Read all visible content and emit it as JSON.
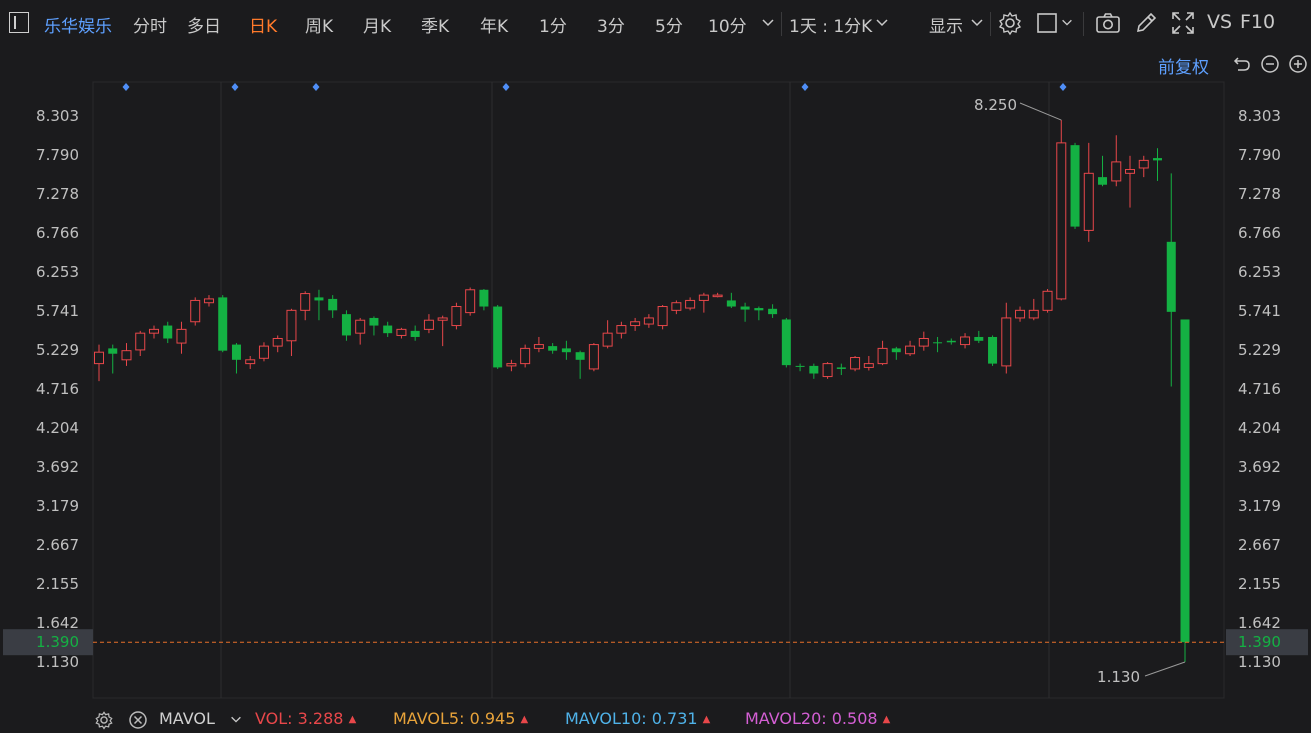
{
  "toolbar": {
    "stock_name": "乐华娱乐",
    "periods": [
      "分时",
      "多日",
      "日K",
      "周K",
      "月K",
      "季K",
      "年K",
      "1分",
      "3分",
      "5分",
      "10分"
    ],
    "active_period": "日K",
    "interval_select": "1天 : 1分K",
    "display_label": "显示",
    "vs_label": "VS",
    "f10_label": "F10",
    "icons": [
      "sidebar-toggle-icon",
      "dropdown-chevron-icon",
      "settings-gear-icon",
      "rectangle-draw-icon",
      "camera-icon",
      "pencil-icon",
      "expand-icon"
    ]
  },
  "adjust_label": "前复权",
  "adjust_icons": [
    "undo-icon",
    "zoom-out-icon",
    "zoom-in-icon"
  ],
  "colors": {
    "up": "#e8474a",
    "down": "#14b143",
    "bg": "#1b1b1d",
    "grid": "#2e2e30",
    "accent": "#5ea0ff",
    "current_line": "#e8702a",
    "marker": "#4f8ef7"
  },
  "chart_data": {
    "type": "candlestick",
    "y_ticks": [
      "8.303",
      "7.790",
      "7.278",
      "6.766",
      "6.253",
      "5.741",
      "5.229",
      "4.716",
      "4.204",
      "3.692",
      "3.179",
      "2.667",
      "2.155",
      "1.642",
      "1.130"
    ],
    "ylim": [
      1.13,
      8.303
    ],
    "current_price": "1.390",
    "high_annotation": "8.250",
    "low_annotation": "1.130",
    "event_marker_count": 6,
    "candles": [
      [
        5.05,
        5.2,
        5.3,
        4.82
      ],
      [
        5.25,
        5.18,
        5.3,
        4.92
      ],
      [
        5.1,
        5.22,
        5.32,
        5.02
      ],
      [
        5.23,
        5.45,
        5.48,
        5.15
      ],
      [
        5.45,
        5.5,
        5.55,
        5.38
      ],
      [
        5.55,
        5.38,
        5.6,
        5.32
      ],
      [
        5.32,
        5.5,
        5.6,
        5.18
      ],
      [
        5.6,
        5.88,
        5.92,
        5.55
      ],
      [
        5.85,
        5.9,
        5.95,
        5.8
      ],
      [
        5.92,
        5.22,
        5.95,
        5.2
      ],
      [
        5.3,
        5.1,
        5.32,
        4.92
      ],
      [
        5.05,
        5.1,
        5.15,
        4.98
      ],
      [
        5.12,
        5.28,
        5.33,
        5.08
      ],
      [
        5.28,
        5.38,
        5.42,
        5.2
      ],
      [
        5.35,
        5.75,
        5.77,
        5.15
      ],
      [
        5.75,
        5.97,
        6.0,
        5.62
      ],
      [
        5.92,
        5.88,
        6.02,
        5.62
      ],
      [
        5.9,
        5.75,
        5.95,
        5.65
      ],
      [
        5.7,
        5.42,
        5.75,
        5.35
      ],
      [
        5.45,
        5.62,
        5.65,
        5.3
      ],
      [
        5.65,
        5.55,
        5.67,
        5.42
      ],
      [
        5.55,
        5.45,
        5.6,
        5.4
      ],
      [
        5.42,
        5.5,
        5.52,
        5.38
      ],
      [
        5.48,
        5.4,
        5.55,
        5.35
      ],
      [
        5.5,
        5.62,
        5.7,
        5.45
      ],
      [
        5.62,
        5.65,
        5.68,
        5.28
      ],
      [
        5.55,
        5.8,
        5.85,
        5.5
      ],
      [
        5.72,
        6.02,
        6.05,
        5.68
      ],
      [
        6.02,
        5.8,
        6.03,
        5.75
      ],
      [
        5.8,
        5.0,
        5.82,
        4.98
      ],
      [
        5.02,
        5.05,
        5.1,
        4.95
      ],
      [
        5.05,
        5.25,
        5.3,
        5.0
      ],
      [
        5.25,
        5.3,
        5.4,
        5.2
      ],
      [
        5.28,
        5.22,
        5.32,
        5.18
      ],
      [
        5.25,
        5.2,
        5.35,
        5.1
      ],
      [
        5.2,
        5.1,
        5.22,
        4.85
      ],
      [
        4.98,
        5.3,
        5.32,
        4.95
      ],
      [
        5.28,
        5.45,
        5.62,
        5.25
      ],
      [
        5.45,
        5.55,
        5.6,
        5.38
      ],
      [
        5.55,
        5.6,
        5.65,
        5.48
      ],
      [
        5.57,
        5.65,
        5.7,
        5.52
      ],
      [
        5.55,
        5.8,
        5.82,
        5.5
      ],
      [
        5.75,
        5.85,
        5.88,
        5.7
      ],
      [
        5.78,
        5.88,
        5.92,
        5.75
      ],
      [
        5.88,
        5.95,
        5.98,
        5.72
      ],
      [
        5.93,
        5.95,
        5.98,
        5.92
      ],
      [
        5.88,
        5.8,
        5.98,
        5.78
      ],
      [
        5.8,
        5.76,
        5.85,
        5.6
      ],
      [
        5.78,
        5.75,
        5.8,
        5.62
      ],
      [
        5.77,
        5.7,
        5.83,
        5.65
      ],
      [
        5.63,
        5.03,
        5.65,
        5.0
      ],
      [
        5.02,
        5.01,
        5.05,
        4.95
      ],
      [
        5.02,
        4.92,
        5.05,
        4.85
      ],
      [
        4.88,
        5.05,
        5.07,
        4.85
      ],
      [
        5.0,
        4.98,
        5.05,
        4.9
      ],
      [
        4.98,
        5.13,
        5.15,
        4.95
      ],
      [
        5.0,
        5.05,
        5.15,
        4.96
      ],
      [
        5.05,
        5.25,
        5.35,
        5.03
      ],
      [
        5.25,
        5.2,
        5.27,
        5.1
      ],
      [
        5.18,
        5.28,
        5.35,
        5.15
      ],
      [
        5.28,
        5.38,
        5.47,
        5.22
      ],
      [
        5.33,
        5.32,
        5.4,
        5.2
      ],
      [
        5.35,
        5.33,
        5.38,
        5.3
      ],
      [
        5.3,
        5.4,
        5.45,
        5.25
      ],
      [
        5.4,
        5.35,
        5.48,
        5.32
      ],
      [
        5.4,
        5.05,
        5.42,
        5.02
      ],
      [
        5.02,
        5.65,
        5.85,
        4.92
      ],
      [
        5.65,
        5.75,
        5.8,
        5.6
      ],
      [
        5.65,
        5.75,
        5.9,
        5.62
      ],
      [
        5.75,
        6.0,
        6.03,
        5.72
      ],
      [
        5.9,
        7.95,
        8.25,
        5.88
      ],
      [
        7.92,
        6.85,
        7.95,
        6.82
      ],
      [
        6.8,
        7.55,
        7.95,
        6.65
      ],
      [
        7.5,
        7.4,
        7.78,
        7.38
      ],
      [
        7.45,
        7.7,
        8.05,
        7.38
      ],
      [
        7.55,
        7.6,
        7.78,
        7.1
      ],
      [
        7.62,
        7.72,
        7.78,
        7.5
      ],
      [
        7.75,
        7.72,
        7.88,
        7.45
      ],
      [
        6.65,
        5.73,
        7.55,
        4.75
      ],
      [
        5.63,
        1.39,
        5.63,
        1.13
      ]
    ]
  },
  "volume_panel": {
    "indicator": "MAVOL",
    "items": [
      {
        "label": "VOL:",
        "value": "3.288",
        "color": "#e8474a"
      },
      {
        "label": "MAVOL5:",
        "value": "0.945",
        "color": "#e8a33a"
      },
      {
        "label": "MAVOL10:",
        "value": "0.731",
        "color": "#4fb2e8"
      },
      {
        "label": "MAVOL20:",
        "value": "0.508",
        "color": "#d45fd4"
      }
    ],
    "trend_icon": "up-triangle-icon"
  }
}
